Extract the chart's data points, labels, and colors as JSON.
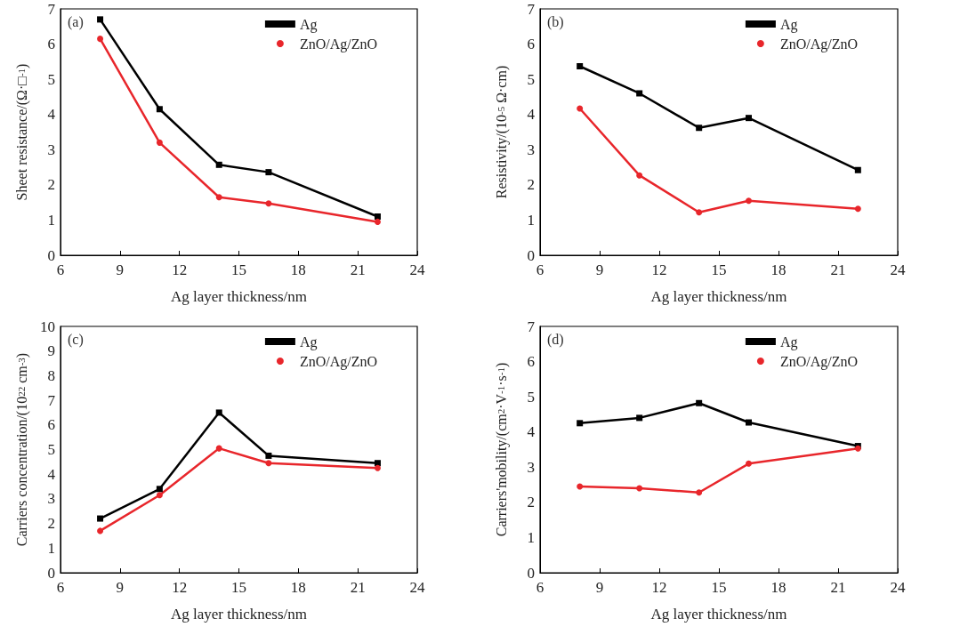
{
  "chart_data": [
    {
      "type": "line",
      "xlabel": "Ag layer thickness/nm",
      "ylabel": "Sheet resistance/(Ω·□$^{-1}$)",
      "annotations": [
        "(a)"
      ],
      "x": [
        8,
        11,
        14,
        16.5,
        22
      ],
      "xlim": [
        6,
        24
      ],
      "xticks": [
        6,
        9,
        12,
        15,
        18,
        21,
        24
      ],
      "ylim": [
        0,
        7
      ],
      "yticks": [
        0,
        1,
        2,
        3,
        4,
        5,
        6,
        7
      ],
      "grid": false,
      "legend": "top right",
      "line_style": "solid",
      "series": [
        {
          "name": "Ag",
          "color": "#000000",
          "marker": "square",
          "values": [
            6.7,
            4.15,
            2.57,
            2.36,
            1.1
          ]
        },
        {
          "name": "ZnO/Ag/ZnO",
          "color": "#e8262b",
          "marker": "circle",
          "values": [
            6.15,
            3.2,
            1.65,
            1.47,
            0.95
          ]
        }
      ]
    },
    {
      "type": "line",
      "xlabel": "Ag layer thickness/nm",
      "ylabel": "Resistivity/(10$^{-5}$ Ω·cm)",
      "annotations": [
        "(b)"
      ],
      "x": [
        8,
        11,
        14,
        16.5,
        22
      ],
      "xlim": [
        6,
        24
      ],
      "xticks": [
        6,
        9,
        12,
        15,
        18,
        21,
        24
      ],
      "ylim": [
        0,
        7
      ],
      "yticks": [
        0,
        1,
        2,
        3,
        4,
        5,
        6,
        7
      ],
      "grid": false,
      "legend": "top right",
      "line_style": "solid",
      "series": [
        {
          "name": "Ag",
          "color": "#000000",
          "marker": "square",
          "values": [
            5.37,
            4.6,
            3.62,
            3.9,
            2.42
          ]
        },
        {
          "name": "ZnO/Ag/ZnO",
          "color": "#e8262b",
          "marker": "circle",
          "values": [
            4.17,
            2.27,
            1.22,
            1.55,
            1.32
          ]
        }
      ]
    },
    {
      "type": "line",
      "xlabel": "Ag layer thickness/nm",
      "ylabel": "Carriers concentration/(10$^{22}$ cm$^{-3}$)",
      "annotations": [
        "(c)"
      ],
      "x": [
        8,
        11,
        14,
        16.5,
        22
      ],
      "xlim": [
        6,
        24
      ],
      "xticks": [
        6,
        9,
        12,
        15,
        18,
        21,
        24
      ],
      "ylim": [
        0,
        10
      ],
      "yticks": [
        0,
        1,
        2,
        3,
        4,
        5,
        6,
        7,
        8,
        9,
        10
      ],
      "grid": false,
      "legend": "top right",
      "line_style": "solid",
      "series": [
        {
          "name": "Ag",
          "color": "#000000",
          "marker": "square",
          "values": [
            2.2,
            3.4,
            6.5,
            4.75,
            4.45
          ]
        },
        {
          "name": "ZnO/Ag/ZnO",
          "color": "#e8262b",
          "marker": "circle",
          "values": [
            1.7,
            3.15,
            5.05,
            4.45,
            4.25
          ]
        }
      ]
    },
    {
      "type": "line",
      "xlabel": "Ag layer thickness/nm",
      "ylabel": "Carriers'mobility/(cm$^{2}$·V$^{-1}$·s$^{-1}$)",
      "annotations": [
        "(d)"
      ],
      "x": [
        8,
        11,
        14,
        16.5,
        22
      ],
      "xlim": [
        6,
        24
      ],
      "xticks": [
        6,
        9,
        12,
        15,
        18,
        21,
        24
      ],
      "ylim": [
        0,
        7
      ],
      "yticks": [
        0,
        1,
        2,
        3,
        4,
        5,
        6,
        7
      ],
      "grid": false,
      "legend": "top right",
      "line_style": "solid",
      "series": [
        {
          "name": "Ag",
          "color": "#000000",
          "marker": "square",
          "values": [
            4.25,
            4.4,
            4.82,
            4.27,
            3.6
          ]
        },
        {
          "name": "ZnO/Ag/ZnO",
          "color": "#e8262b",
          "marker": "circle",
          "values": [
            2.45,
            2.4,
            2.28,
            3.1,
            3.53
          ]
        }
      ]
    }
  ]
}
